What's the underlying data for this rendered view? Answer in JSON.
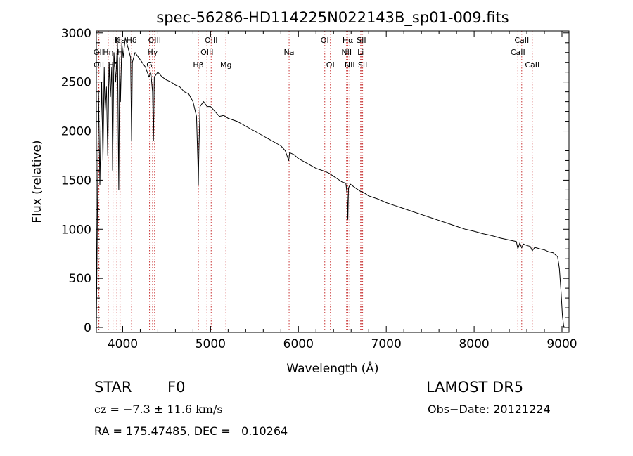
{
  "chart_data": {
    "type": "line",
    "title": "spec-56286-HD114225N022143B_sp01-009.fits",
    "xlabel": "Wavelength (Å)",
    "ylabel": "Flux (relative)",
    "xlim": [
      3700,
      9080
    ],
    "ylim": [
      -50,
      3020
    ],
    "xticks": [
      4000,
      5000,
      6000,
      7000,
      8000,
      9000
    ],
    "xtick_labels": [
      "4000",
      "5000",
      "6000",
      "7000",
      "8000",
      "9000"
    ],
    "yticks": [
      0,
      500,
      1000,
      1500,
      2000,
      2500,
      3000
    ],
    "ytick_labels": [
      "0",
      "500",
      "1000",
      "1500",
      "2000",
      "2500",
      "3000"
    ],
    "grid": false,
    "series": [
      {
        "x": [
          3700,
          3712,
          3725,
          3740,
          3760,
          3775,
          3790,
          3800,
          3815,
          3830,
          3845,
          3860,
          3875,
          3885,
          3900,
          3920,
          3940,
          3955,
          3965,
          3975,
          3990,
          4005,
          4030,
          4060,
          4090,
          4101,
          4110,
          4140,
          4180,
          4220,
          4260,
          4300,
          4320,
          4340,
          4350,
          4360,
          4400,
          4450,
          4500,
          4550,
          4600,
          4650,
          4700,
          4750,
          4800,
          4840,
          4855,
          4861,
          4867,
          4880,
          4920,
          4960,
          5000,
          5050,
          5100,
          5150,
          5200,
          5300,
          5400,
          5500,
          5600,
          5700,
          5800,
          5850,
          5890,
          5900,
          5950,
          6000,
          6100,
          6200,
          6300,
          6350,
          6400,
          6450,
          6500,
          6540,
          6556,
          6563,
          6570,
          6590,
          6620,
          6650,
          6700,
          6750,
          6800,
          6900,
          7000,
          7100,
          7200,
          7300,
          7400,
          7500,
          7600,
          7700,
          7800,
          7900,
          8000,
          8100,
          8200,
          8300,
          8400,
          8480,
          8498,
          8520,
          8542,
          8560,
          8600,
          8640,
          8662,
          8690,
          8750,
          8800,
          8850,
          8900,
          8950,
          8970,
          8990,
          9005,
          9020,
          9040
        ],
        "y": [
          0,
          1200,
          2400,
          1450,
          2500,
          1700,
          2650,
          2200,
          2450,
          1750,
          2700,
          2350,
          2650,
          1600,
          2800,
          2500,
          2900,
          1400,
          2750,
          2300,
          2900,
          2750,
          2950,
          2850,
          2750,
          1900,
          2700,
          2800,
          2750,
          2700,
          2650,
          2550,
          2600,
          2400,
          1900,
          2550,
          2600,
          2550,
          2520,
          2500,
          2470,
          2450,
          2400,
          2380,
          2300,
          2150,
          1700,
          1450,
          1800,
          2250,
          2300,
          2250,
          2250,
          2200,
          2150,
          2160,
          2130,
          2100,
          2050,
          2000,
          1950,
          1900,
          1850,
          1800,
          1700,
          1780,
          1760,
          1720,
          1670,
          1620,
          1590,
          1570,
          1540,
          1510,
          1480,
          1470,
          1350,
          1100,
          1420,
          1460,
          1440,
          1420,
          1390,
          1370,
          1340,
          1310,
          1270,
          1240,
          1210,
          1180,
          1150,
          1120,
          1090,
          1060,
          1030,
          1000,
          980,
          955,
          935,
          910,
          890,
          875,
          800,
          860,
          810,
          850,
          835,
          825,
          780,
          815,
          800,
          790,
          770,
          760,
          720,
          600,
          350,
          120,
          10,
          0
        ]
      }
    ],
    "line_markers": [
      {
        "label": "Hδ",
        "x": 4101,
        "row": 1
      },
      {
        "label": "K",
        "x": 3934,
        "row": 1
      },
      {
        "label": "H",
        "x": 3968,
        "row": 2
      },
      {
        "label": "Hε",
        "x": 3970,
        "row": 1
      },
      {
        "label": "OII",
        "x": 3727,
        "row": 2
      },
      {
        "label": "OII",
        "x": 3729,
        "row": 3
      },
      {
        "label": "Hη",
        "x": 3835,
        "row": 2
      },
      {
        "label": "Hζ",
        "x": 3889,
        "row": 3
      },
      {
        "label": "G",
        "x": 4305,
        "row": 3
      },
      {
        "label": "Hγ",
        "x": 4340,
        "row": 2
      },
      {
        "label": "OIII",
        "x": 4363,
        "row": 1
      },
      {
        "label": "Hβ",
        "x": 4861,
        "row": 3
      },
      {
        "label": "OIII",
        "x": 4959,
        "row": 2
      },
      {
        "label": "OIII",
        "x": 5007,
        "row": 1
      },
      {
        "label": "Mg",
        "x": 5175,
        "row": 3
      },
      {
        "label": "Na",
        "x": 5894,
        "row": 2
      },
      {
        "label": "OI",
        "x": 6300,
        "row": 1
      },
      {
        "label": "OI",
        "x": 6364,
        "row": 3
      },
      {
        "label": "NII",
        "x": 6548,
        "row": 2
      },
      {
        "label": "Hα",
        "x": 6563,
        "row": 1
      },
      {
        "label": "NII",
        "x": 6584,
        "row": 3
      },
      {
        "label": "Li",
        "x": 6708,
        "row": 2
      },
      {
        "label": "SII",
        "x": 6717,
        "row": 1
      },
      {
        "label": "SII",
        "x": 6731,
        "row": 3
      },
      {
        "label": "CaII",
        "x": 8498,
        "row": 2
      },
      {
        "label": "CaII",
        "x": 8542,
        "row": 1
      },
      {
        "label": "CaII",
        "x": 8662,
        "row": 3
      }
    ]
  },
  "footer": {
    "class_label": "STAR",
    "subclass": "F0",
    "survey": "LAMOST DR5",
    "redshift": "cz = −7.3 ± 11.6 km/s",
    "obs_date": "Obs−Date: 20121224",
    "coords": "RA = 175.47485, DEC =   0.10264"
  },
  "colors": {
    "marker_line": "#c83232",
    "spectrum": "#000000",
    "axes": "#000000"
  }
}
